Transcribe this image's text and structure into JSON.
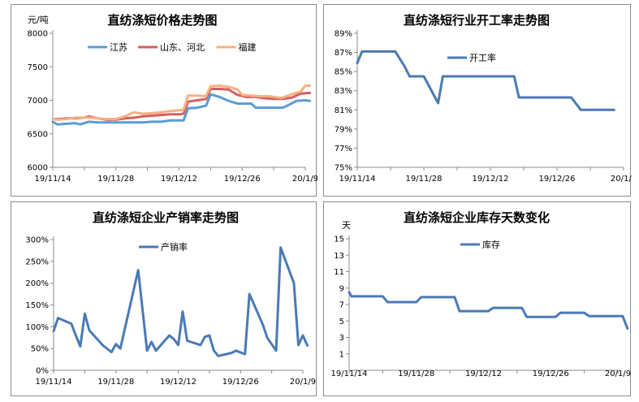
{
  "chart_data": [
    {
      "id": "p1",
      "type": "line",
      "title": "直纺涤短价格走势图",
      "ylabel": "元/吨",
      "ylim": [
        6000,
        8000
      ],
      "yticks": [
        6000,
        6500,
        7000,
        7500,
        8000
      ],
      "xlim": [
        0,
        56
      ],
      "xticks": [
        {
          "x": 0,
          "label": "19/11/14"
        },
        {
          "x": 14,
          "label": "19/11/28"
        },
        {
          "x": 28,
          "label": "19/12/12"
        },
        {
          "x": 42,
          "label": "19/12/26"
        },
        {
          "x": 56,
          "label": "20/1/9"
        }
      ],
      "legend_position": "top",
      "series": [
        {
          "name": "江苏",
          "color": "#5b9bd5",
          "points": [
            [
              0,
              6680
            ],
            [
              1,
              6640
            ],
            [
              3,
              6650
            ],
            [
              5,
              6660
            ],
            [
              6,
              6640
            ],
            [
              8,
              6680
            ],
            [
              10,
              6670
            ],
            [
              12,
              6670
            ],
            [
              14,
              6670
            ],
            [
              16,
              6670
            ],
            [
              18,
              6670
            ],
            [
              20,
              6670
            ],
            [
              22,
              6680
            ],
            [
              24,
              6680
            ],
            [
              26,
              6700
            ],
            [
              28,
              6700
            ],
            [
              29,
              6700
            ],
            [
              30,
              6880
            ],
            [
              32,
              6890
            ],
            [
              34,
              6920
            ],
            [
              35,
              7090
            ],
            [
              37,
              7050
            ],
            [
              39,
              6990
            ],
            [
              41,
              6950
            ],
            [
              43,
              6950
            ],
            [
              44,
              6950
            ],
            [
              45,
              6890
            ],
            [
              47,
              6890
            ],
            [
              49,
              6890
            ],
            [
              51,
              6890
            ],
            [
              52,
              6920
            ],
            [
              54,
              6990
            ],
            [
              56,
              7000
            ],
            [
              57,
              6990
            ]
          ]
        },
        {
          "name": "山东、河北",
          "color": "#d45f63",
          "points": [
            [
              0,
              6720
            ],
            [
              1,
              6720
            ],
            [
              3,
              6730
            ],
            [
              5,
              6730
            ],
            [
              7,
              6740
            ],
            [
              8,
              6760
            ],
            [
              10,
              6730
            ],
            [
              12,
              6710
            ],
            [
              14,
              6710
            ],
            [
              16,
              6730
            ],
            [
              18,
              6740
            ],
            [
              20,
              6760
            ],
            [
              22,
              6770
            ],
            [
              24,
              6780
            ],
            [
              26,
              6790
            ],
            [
              28,
              6790
            ],
            [
              29,
              6800
            ],
            [
              30,
              6980
            ],
            [
              32,
              7000
            ],
            [
              34,
              7020
            ],
            [
              35,
              7170
            ],
            [
              37,
              7170
            ],
            [
              39,
              7160
            ],
            [
              41,
              7080
            ],
            [
              43,
              7050
            ],
            [
              45,
              7050
            ],
            [
              47,
              7030
            ],
            [
              49,
              7020
            ],
            [
              51,
              7020
            ],
            [
              53,
              7040
            ],
            [
              55,
              7100
            ],
            [
              57,
              7110
            ]
          ]
        },
        {
          "name": "福建",
          "color": "#f4b183",
          "points": [
            [
              0,
              6720
            ],
            [
              1,
              6710
            ],
            [
              3,
              6720
            ],
            [
              5,
              6740
            ],
            [
              7,
              6740
            ],
            [
              8,
              6740
            ],
            [
              10,
              6730
            ],
            [
              12,
              6720
            ],
            [
              14,
              6720
            ],
            [
              16,
              6760
            ],
            [
              18,
              6820
            ],
            [
              20,
              6800
            ],
            [
              22,
              6810
            ],
            [
              24,
              6820
            ],
            [
              26,
              6840
            ],
            [
              28,
              6850
            ],
            [
              29,
              6860
            ],
            [
              30,
              7070
            ],
            [
              32,
              7070
            ],
            [
              34,
              7060
            ],
            [
              35,
              7210
            ],
            [
              37,
              7220
            ],
            [
              39,
              7200
            ],
            [
              41,
              7160
            ],
            [
              42,
              7080
            ],
            [
              44,
              7070
            ],
            [
              46,
              7060
            ],
            [
              48,
              7060
            ],
            [
              50,
              7040
            ],
            [
              51,
              7040
            ],
            [
              53,
              7090
            ],
            [
              55,
              7130
            ],
            [
              56,
              7220
            ],
            [
              57,
              7220
            ]
          ]
        }
      ]
    },
    {
      "id": "p2",
      "type": "line",
      "title": "直纺涤短行业开工率走势图",
      "ylim": [
        75,
        89
      ],
      "yticks": [
        75,
        77,
        79,
        81,
        83,
        85,
        87,
        89
      ],
      "tick_suffix": "%",
      "xlim": [
        0,
        56
      ],
      "xticks": [
        {
          "x": 0,
          "label": "19/11/14"
        },
        {
          "x": 14,
          "label": "19/11/28"
        },
        {
          "x": 28,
          "label": "19/12/12"
        },
        {
          "x": 42,
          "label": "19/12/26"
        },
        {
          "x": 56,
          "label": "20/1/9"
        }
      ],
      "legend_position": "top",
      "series": [
        {
          "name": "开工率",
          "color": "#4a7ab5",
          "points": [
            [
              0,
              85.9
            ],
            [
              1,
              87.1
            ],
            [
              8,
              87.1
            ],
            [
              10,
              85.5
            ],
            [
              11,
              84.5
            ],
            [
              14,
              84.5
            ],
            [
              17,
              81.7
            ],
            [
              18,
              84.5
            ],
            [
              33,
              84.5
            ],
            [
              34,
              82.3
            ],
            [
              45,
              82.3
            ],
            [
              47,
              81.0
            ],
            [
              54,
              81.0
            ]
          ]
        }
      ]
    },
    {
      "id": "p3",
      "type": "line",
      "title": "直纺涤短企业产销率走势图",
      "ylim": [
        0,
        300
      ],
      "yticks": [
        0,
        50,
        100,
        150,
        200,
        250,
        300
      ],
      "tick_suffix": "%",
      "xlim": [
        0,
        56
      ],
      "xticks": [
        {
          "x": 0,
          "label": "19/11/14"
        },
        {
          "x": 14,
          "label": "19/11/28"
        },
        {
          "x": 28,
          "label": "19/12/12"
        },
        {
          "x": 42,
          "label": "19/12/26"
        },
        {
          "x": 56,
          "label": "20/1/9"
        }
      ],
      "legend_position": "top",
      "series": [
        {
          "name": "产销率",
          "color": "#4a7ab5",
          "points": [
            [
              0,
              90
            ],
            [
              1,
              120
            ],
            [
              4,
              107
            ],
            [
              5,
              80
            ],
            [
              6,
              55
            ],
            [
              7,
              130
            ],
            [
              8,
              92
            ],
            [
              11,
              58
            ],
            [
              13,
              42
            ],
            [
              14,
              60
            ],
            [
              15,
              50
            ],
            [
              19,
              230
            ],
            [
              21,
              45
            ],
            [
              22,
              65
            ],
            [
              23,
              45
            ],
            [
              26,
              80
            ],
            [
              27,
              72
            ],
            [
              28,
              58
            ],
            [
              29,
              135
            ],
            [
              30,
              68
            ],
            [
              33,
              58
            ],
            [
              34,
              77
            ],
            [
              35,
              80
            ],
            [
              36,
              45
            ],
            [
              37,
              33
            ],
            [
              40,
              40
            ],
            [
              41,
              45
            ],
            [
              43,
              37
            ],
            [
              44,
              175
            ],
            [
              47,
              105
            ],
            [
              48,
              75
            ],
            [
              50,
              45
            ],
            [
              51,
              282
            ],
            [
              54,
              200
            ],
            [
              55,
              58
            ],
            [
              56,
              80
            ],
            [
              57,
              57
            ]
          ]
        }
      ]
    },
    {
      "id": "p4",
      "type": "line",
      "title": "直纺涤短企业库存天数变化",
      "ylabel": "天",
      "ylim": [
        -1,
        15
      ],
      "yticks": [
        1,
        3,
        5,
        7,
        9,
        11,
        13,
        15
      ],
      "xlim": [
        0,
        56
      ],
      "xticks": [
        {
          "x": 0,
          "label": "19/11/14"
        },
        {
          "x": 14,
          "label": "19/11/28"
        },
        {
          "x": 28,
          "label": "19/12/12"
        },
        {
          "x": 42,
          "label": "19/12/26"
        },
        {
          "x": 56,
          "label": "20/1/9"
        }
      ],
      "legend_position": "top",
      "series": [
        {
          "name": "库存",
          "color": "#4a7ab5",
          "points": [
            [
              0,
              8.5
            ],
            [
              0.5,
              8.0
            ],
            [
              7,
              8.0
            ],
            [
              8,
              7.3
            ],
            [
              14,
              7.3
            ],
            [
              15,
              7.9
            ],
            [
              22,
              7.9
            ],
            [
              23,
              6.2
            ],
            [
              29,
              6.2
            ],
            [
              30,
              6.6
            ],
            [
              36,
              6.6
            ],
            [
              37,
              5.5
            ],
            [
              43,
              5.5
            ],
            [
              44,
              6.0
            ],
            [
              49,
              6.0
            ],
            [
              50,
              5.6
            ],
            [
              57,
              5.6
            ],
            [
              58,
              4.1
            ]
          ]
        }
      ]
    }
  ]
}
